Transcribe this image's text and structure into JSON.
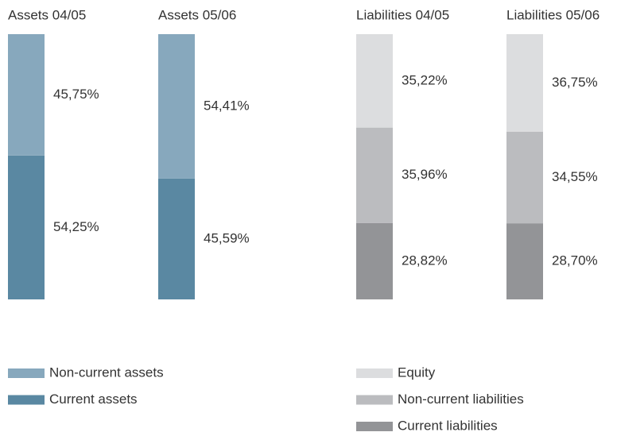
{
  "chart_data": [
    {
      "type": "bar",
      "stacked": true,
      "categories": [
        "Assets 04/05",
        "Assets 05/06"
      ],
      "ylim": [
        0,
        100
      ],
      "series": [
        {
          "name": "Non-current assets",
          "color": "#87a8bd",
          "values": [
            45.75,
            54.41
          ],
          "value_labels": [
            "45,75%",
            "54,41%"
          ]
        },
        {
          "name": "Current assets",
          "color": "#5a88a2",
          "values": [
            54.25,
            45.59
          ],
          "value_labels": [
            "54,25%",
            "45,59%"
          ]
        }
      ]
    },
    {
      "type": "bar",
      "stacked": true,
      "categories": [
        "Liabilities 04/05",
        "Liabilities 05/06"
      ],
      "ylim": [
        0,
        100
      ],
      "series": [
        {
          "name": "Equity",
          "color": "#dcdddf",
          "values": [
            35.22,
            36.75
          ],
          "value_labels": [
            "35,22%",
            "36,75%"
          ]
        },
        {
          "name": "Non-current liabilities",
          "color": "#bbbcbf",
          "values": [
            35.96,
            34.55
          ],
          "value_labels": [
            "35,96%",
            "34,55%"
          ]
        },
        {
          "name": "Current liabilities",
          "color": "#939497",
          "values": [
            28.82,
            28.7
          ],
          "value_labels": [
            "28,82%",
            "28,70%"
          ]
        }
      ]
    }
  ]
}
